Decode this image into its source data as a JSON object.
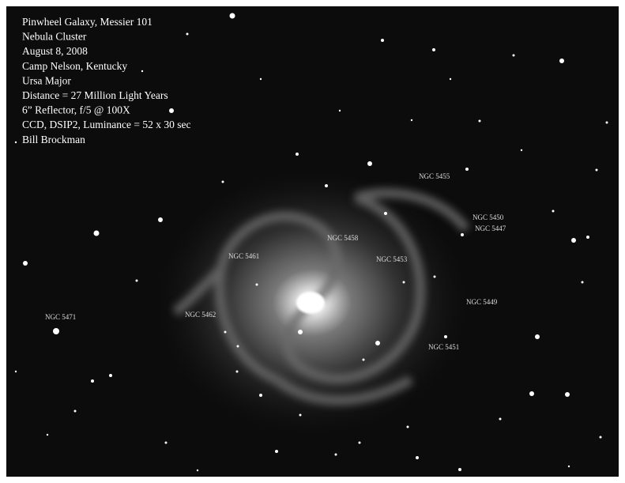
{
  "caption": {
    "lines": [
      "Pinwheel Galaxy, Messier 101",
      "Nebula Cluster",
      "August 8, 2008",
      "Camp Nelson, Kentucky",
      "Ursa Major",
      "Distance = 27 Million Light Years",
      "6” Reflector, f/5 @ 100X",
      "CCD, DSIP2, Luminance = 52 x 30 sec",
      "Bill Brockman"
    ]
  },
  "labels": [
    "NGC 5455",
    "NGC 5450",
    "NGC 5447",
    "NGC 5458",
    "NGC 5461",
    "NGC 5453",
    "NGC 5449",
    "NGC 5462",
    "NGC 5471",
    "NGC 5451"
  ]
}
